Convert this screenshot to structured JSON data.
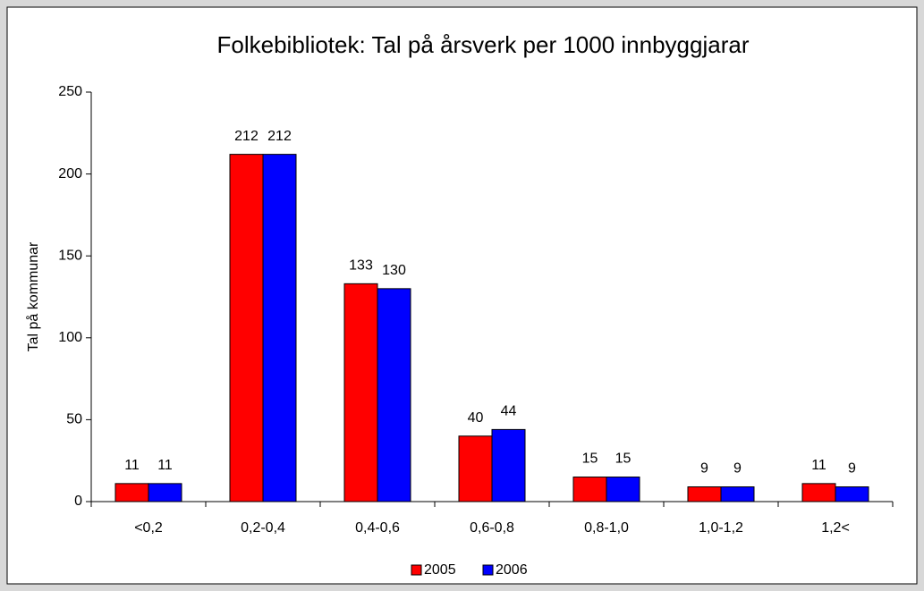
{
  "chart_data": {
    "type": "bar",
    "title": "Folkebibliotek: Tal på årsverk per 1000 innbyggjarar",
    "y_label": "Tal på kommunar",
    "categories": [
      "<0,2",
      "0,2-0,4",
      "0,4-0,6",
      "0,6-0,8",
      "0,8-1,0",
      "1,0-1,2",
      "1,2<"
    ],
    "series": [
      {
        "name": "2005",
        "color": "#ff0000",
        "values": [
          11,
          212,
          133,
          40,
          15,
          9,
          11
        ]
      },
      {
        "name": "2006",
        "color": "#0000ff",
        "values": [
          11,
          212,
          130,
          44,
          15,
          9,
          9
        ]
      }
    ],
    "ylim": [
      0,
      250
    ],
    "yticks": [
      0,
      50,
      100,
      150,
      200,
      250
    ],
    "legend": "bottom"
  }
}
